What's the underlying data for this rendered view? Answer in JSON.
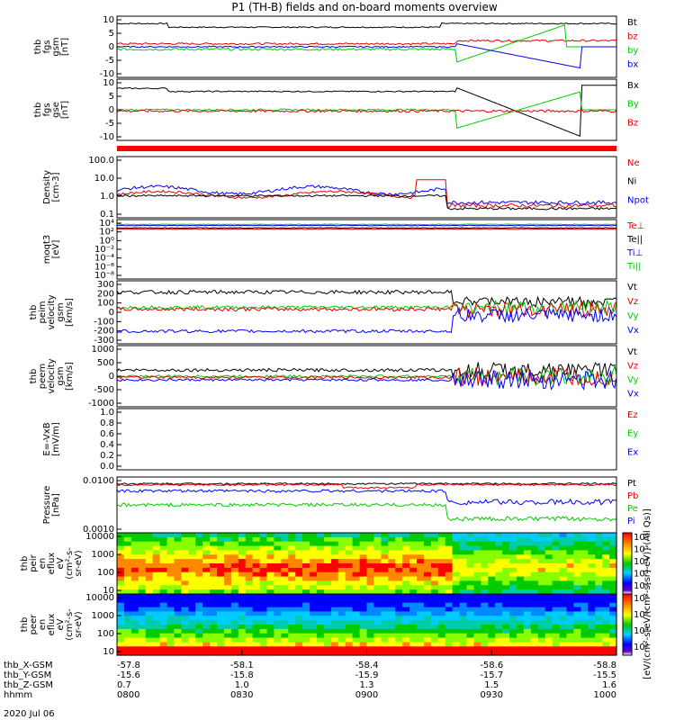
{
  "chart_data": {
    "type": "line",
    "title": "P1 (TH-B) fields and on-board moments overview",
    "date": "2020 Jul 06",
    "panels": [
      {
        "id": "fgs-gsm",
        "ylabel": [
          "thb",
          "fgs",
          "gsm",
          "[nT]"
        ],
        "scale": "linear",
        "ylim": [
          -10,
          10
        ],
        "yticks": [
          "10",
          "5",
          "0",
          "-5",
          "-10"
        ],
        "legend": [
          {
            "name": "Bt",
            "color": "#000000"
          },
          {
            "name": "bz",
            "color": "#e00000"
          },
          {
            "name": "by",
            "color": "#00cc00"
          },
          {
            "name": "bx",
            "color": "#0000ff"
          }
        ]
      },
      {
        "id": "fgs-gse",
        "ylabel": [
          "thb",
          "fgs",
          "gse",
          "[nT]"
        ],
        "scale": "linear",
        "ylim": [
          -12,
          12
        ],
        "yticks": [
          "10",
          "5",
          "0",
          "-5",
          "-10"
        ],
        "legend": [
          {
            "name": "Bx",
            "color": "#000000"
          },
          {
            "name": "By",
            "color": "#00cc00"
          },
          {
            "name": "Bz",
            "color": "#e00000"
          }
        ]
      },
      {
        "id": "density",
        "ylabel": [
          "Density",
          "[cm-3]"
        ],
        "scale": "log",
        "ylim": [
          0.02,
          300
        ],
        "yticks": [
          "100.0",
          "10.0",
          "1.0",
          "0.1"
        ],
        "legend": [
          {
            "name": "Ne",
            "color": "#e00000"
          },
          {
            "name": "Ni",
            "color": "#000000"
          },
          {
            "name": "Npot",
            "color": "#0000ff"
          }
        ]
      },
      {
        "id": "temperature",
        "ylabel": [
          "moqt3",
          "[eV]"
        ],
        "scale": "log",
        "ylim": [
          1e-08,
          10000.0
        ],
        "yticks": [
          "10⁴",
          "10²",
          "10⁰",
          "10⁻²",
          "10⁻⁴",
          "10⁻⁶",
          "10⁻⁸"
        ],
        "legend": [
          {
            "name": "Te⊥",
            "color": "#e00000"
          },
          {
            "name": "Te||",
            "color": "#000000"
          },
          {
            "name": "Ti⊥",
            "color": "#0000ff"
          },
          {
            "name": "Ti||",
            "color": "#00cc00"
          }
        ]
      },
      {
        "id": "peim-velocity",
        "ylabel": [
          "thb",
          "peim",
          "velocity",
          "gsm",
          "[km/s]"
        ],
        "scale": "linear",
        "ylim": [
          -300,
          300
        ],
        "yticks": [
          "300",
          "200",
          "100",
          "0",
          "-100",
          "-200",
          "-300"
        ],
        "legend": [
          {
            "name": "Vt",
            "color": "#000000"
          },
          {
            "name": "Vz",
            "color": "#e00000"
          },
          {
            "name": "Vy",
            "color": "#00cc00"
          },
          {
            "name": "Vx",
            "color": "#0000ff"
          }
        ]
      },
      {
        "id": "peem-velocity",
        "ylabel": [
          "thb",
          "peem",
          "velocity",
          "gsm",
          "[km/s]"
        ],
        "scale": "linear",
        "ylim": [
          -1000,
          1000
        ],
        "yticks": [
          "1000",
          "500",
          "0",
          "-500",
          "-1000"
        ],
        "legend": [
          {
            "name": "Vt",
            "color": "#000000"
          },
          {
            "name": "Vz",
            "color": "#e00000"
          },
          {
            "name": "Vy",
            "color": "#00cc00"
          },
          {
            "name": "Vx",
            "color": "#0000ff"
          }
        ]
      },
      {
        "id": "e-field",
        "ylabel": [
          "E=-VxB",
          "[mV/m]"
        ],
        "scale": "linear",
        "ylim": [
          0,
          1
        ],
        "yticks": [
          "1.0",
          "0.8",
          "0.6",
          "0.4",
          "0.2",
          "0.0"
        ],
        "legend": [
          {
            "name": "Ez",
            "color": "#e00000"
          },
          {
            "name": "Ey",
            "color": "#00cc00"
          },
          {
            "name": "Ex",
            "color": "#0000ff"
          }
        ]
      },
      {
        "id": "pressure",
        "ylabel": [
          "Pressure",
          "[nPa]"
        ],
        "scale": "log",
        "ylim": [
          0.0004,
          0.06
        ],
        "yticks": [
          "0.0100",
          "0.0010"
        ],
        "legend": [
          {
            "name": "Pt",
            "color": "#000000"
          },
          {
            "name": "Pb",
            "color": "#e00000"
          },
          {
            "name": "Pe",
            "color": "#00cc00"
          },
          {
            "name": "Pi",
            "color": "#0000ff"
          }
        ]
      },
      {
        "id": "peir-spectrogram",
        "type": "heatmap",
        "ylabel": [
          "thb",
          "peir",
          "en",
          "eflux",
          "eV",
          "(cm²-s-",
          "sr-eV)"
        ],
        "scale": "log",
        "yticks": [
          "10000",
          "1000",
          "100",
          "10"
        ],
        "colorbar_ticks": [
          "10⁶",
          "10⁵",
          "10⁴",
          "10³",
          "10²"
        ]
      },
      {
        "id": "peer-spectrogram",
        "type": "heatmap",
        "ylabel": [
          "thb",
          "peer",
          "en",
          "eflux",
          "eV",
          "(cm²-s-",
          "sr-eV)"
        ],
        "scale": "log",
        "yticks": [
          "10000",
          "1000",
          "100",
          "10"
        ],
        "colorbar_ticks": [
          "10⁸",
          "10⁶",
          "10⁴",
          "10²"
        ]
      }
    ],
    "colorbar_label": "[eV/(cm²-s[eV/(cm²-s[sr]-eV)] (All Qs)]",
    "x_axis": {
      "rows": [
        {
          "label": "thb_X-GSM",
          "values": [
            "-57.8",
            "-58.1",
            "-58.4",
            "-58.6",
            "-58.8"
          ]
        },
        {
          "label": "thb_Y-GSM",
          "values": [
            "-15.6",
            "-15.8",
            "-15.9",
            "-15.7",
            "-15.5"
          ]
        },
        {
          "label": "thb_Z-GSM",
          "values": [
            "0.7",
            "1.0",
            "1.3",
            "1.5",
            "1.6"
          ]
        },
        {
          "label": "hhmm",
          "values": [
            "0800",
            "0830",
            "0900",
            "0930",
            "1000"
          ]
        }
      ],
      "time_range": [
        "08:00",
        "10:00"
      ]
    }
  }
}
